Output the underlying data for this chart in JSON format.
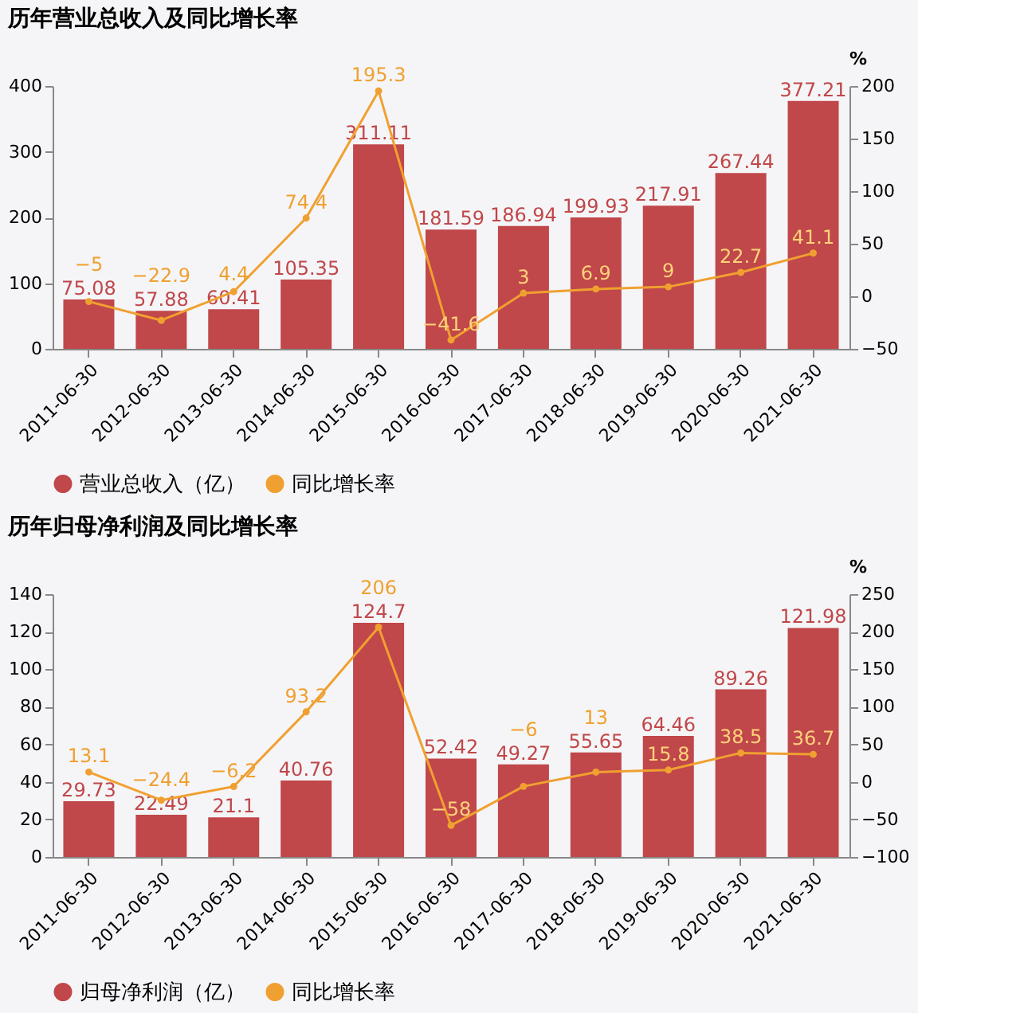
{
  "chart_data": [
    {
      "type": "bar",
      "title": "历年营业总收入及同比增长率",
      "categories": [
        "2011-06-30",
        "2012-06-30",
        "2013-06-30",
        "2014-06-30",
        "2015-06-30",
        "2016-06-30",
        "2017-06-30",
        "2018-06-30",
        "2019-06-30",
        "2020-06-30",
        "2021-06-30"
      ],
      "series": [
        {
          "name": "营业总收入（亿）",
          "color": "#c0474a",
          "values": [
            75.08,
            57.88,
            60.41,
            105.35,
            311.11,
            181.59,
            186.94,
            199.93,
            217.91,
            267.44,
            377.21
          ]
        },
        {
          "name": "同比增长率",
          "type": "line",
          "axis": "y2",
          "color": "#f0a030",
          "marker": "circle",
          "values": [
            -5,
            -22.9,
            4.4,
            74.4,
            195.3,
            -41.6,
            3,
            6.9,
            9,
            22.7,
            41.1
          ]
        }
      ],
      "ylim": [
        0,
        400
      ],
      "yticks": [
        0,
        100,
        200,
        300,
        400
      ],
      "y2lim": [
        -50,
        200
      ],
      "y2ticks": [
        -50,
        0,
        50,
        100,
        150,
        200
      ],
      "y2label": "%",
      "data_labels": true,
      "legend": "bottom",
      "grid": false
    },
    {
      "type": "bar",
      "title": "历年归母净利润及同比增长率",
      "categories": [
        "2011-06-30",
        "2012-06-30",
        "2013-06-30",
        "2014-06-30",
        "2015-06-30",
        "2016-06-30",
        "2017-06-30",
        "2018-06-30",
        "2019-06-30",
        "2020-06-30",
        "2021-06-30"
      ],
      "series": [
        {
          "name": "归母净利润（亿）",
          "color": "#c0474a",
          "values": [
            29.73,
            22.49,
            21.1,
            40.76,
            124.7,
            52.42,
            49.27,
            55.65,
            64.46,
            89.26,
            121.98
          ]
        },
        {
          "name": "同比增长率",
          "type": "line",
          "axis": "y2",
          "color": "#f0a030",
          "marker": "circle",
          "values": [
            13.1,
            -24.4,
            -6.2,
            93.2,
            206,
            -58,
            -6,
            13,
            15.8,
            38.5,
            36.7
          ]
        }
      ],
      "ylim": [
        0,
        140
      ],
      "yticks": [
        0,
        20,
        40,
        60,
        80,
        100,
        120,
        140
      ],
      "y2lim": [
        -100,
        250
      ],
      "y2ticks": [
        -100,
        -50,
        0,
        50,
        100,
        150,
        200,
        250
      ],
      "y2label": "%",
      "data_labels": true,
      "legend": "bottom",
      "grid": false
    }
  ]
}
